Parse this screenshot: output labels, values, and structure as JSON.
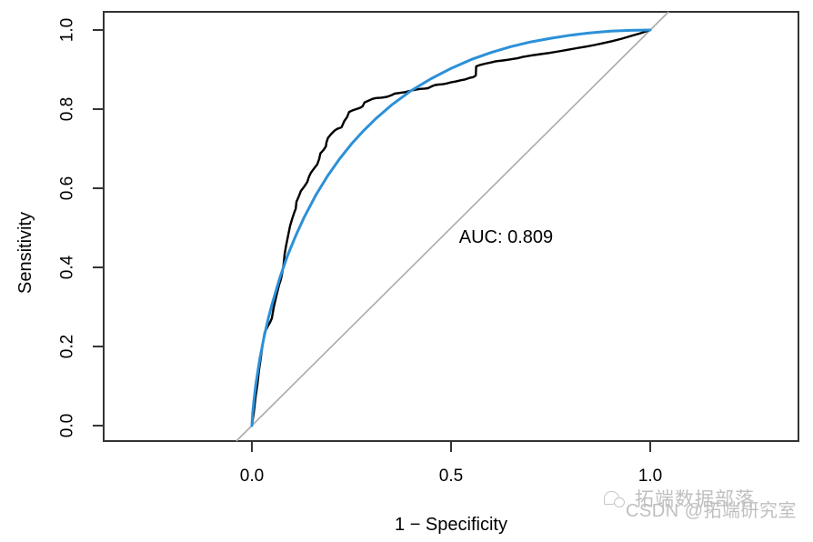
{
  "figure": {
    "background": "#ffffff",
    "axis_color": "#333333",
    "text_color": "#000000"
  },
  "chart_data": {
    "type": "line",
    "title": "",
    "xlabel": "1 − Specificity",
    "ylabel": "Sensitivity",
    "xlim": [
      -0.372,
      1.372
    ],
    "ylim": [
      -0.039,
      1.046
    ],
    "grid": false,
    "legend": "none",
    "x_ticks": [
      0.0,
      0.5,
      1.0
    ],
    "x_tick_labels": [
      "0.0",
      "0.5",
      "1.0"
    ],
    "y_ticks": [
      0.0,
      0.2,
      0.4,
      0.6,
      0.8,
      1.0
    ],
    "y_tick_labels": [
      "0.0",
      "0.2",
      "0.4",
      "0.6",
      "0.8",
      "1.0"
    ],
    "annotation": {
      "text": "AUC: 0.809",
      "x": 0.638,
      "y": 0.476
    },
    "reference_line": {
      "from": [
        0,
        0
      ],
      "to": [
        1,
        1
      ],
      "color": "#ababab",
      "meaning": "chance diagonal"
    },
    "series": [
      {
        "name": "empirical ROC",
        "color": "#000000",
        "width": 2.4,
        "points": [
          [
            0.0,
            0.0
          ],
          [
            0.005,
            0.035
          ],
          [
            0.009,
            0.07
          ],
          [
            0.014,
            0.105
          ],
          [
            0.018,
            0.14
          ],
          [
            0.023,
            0.175
          ],
          [
            0.027,
            0.205
          ],
          [
            0.032,
            0.235
          ],
          [
            0.041,
            0.253
          ],
          [
            0.046,
            0.262
          ],
          [
            0.05,
            0.271
          ],
          [
            0.055,
            0.3
          ],
          [
            0.062,
            0.33
          ],
          [
            0.068,
            0.355
          ],
          [
            0.073,
            0.37
          ],
          [
            0.077,
            0.39
          ],
          [
            0.08,
            0.41
          ],
          [
            0.082,
            0.432
          ],
          [
            0.086,
            0.455
          ],
          [
            0.091,
            0.48
          ],
          [
            0.096,
            0.505
          ],
          [
            0.102,
            0.525
          ],
          [
            0.107,
            0.54
          ],
          [
            0.11,
            0.548
          ],
          [
            0.112,
            0.566
          ],
          [
            0.118,
            0.58
          ],
          [
            0.123,
            0.593
          ],
          [
            0.132,
            0.605
          ],
          [
            0.139,
            0.616
          ],
          [
            0.143,
            0.628
          ],
          [
            0.148,
            0.639
          ],
          [
            0.157,
            0.651
          ],
          [
            0.164,
            0.66
          ],
          [
            0.169,
            0.674
          ],
          [
            0.172,
            0.688
          ],
          [
            0.18,
            0.697
          ],
          [
            0.186,
            0.706
          ],
          [
            0.187,
            0.715
          ],
          [
            0.191,
            0.727
          ],
          [
            0.198,
            0.736
          ],
          [
            0.207,
            0.745
          ],
          [
            0.214,
            0.75
          ],
          [
            0.225,
            0.754
          ],
          [
            0.229,
            0.763
          ],
          [
            0.232,
            0.77
          ],
          [
            0.239,
            0.78
          ],
          [
            0.244,
            0.793
          ],
          [
            0.253,
            0.797
          ],
          [
            0.262,
            0.8
          ],
          [
            0.271,
            0.803
          ],
          [
            0.278,
            0.807
          ],
          [
            0.283,
            0.817
          ],
          [
            0.292,
            0.821
          ],
          [
            0.303,
            0.826
          ],
          [
            0.312,
            0.828
          ],
          [
            0.325,
            0.829
          ],
          [
            0.339,
            0.831
          ],
          [
            0.35,
            0.835
          ],
          [
            0.358,
            0.839
          ],
          [
            0.371,
            0.841
          ],
          [
            0.385,
            0.843
          ],
          [
            0.396,
            0.846
          ],
          [
            0.41,
            0.849
          ],
          [
            0.422,
            0.851
          ],
          [
            0.434,
            0.852
          ],
          [
            0.442,
            0.853
          ],
          [
            0.452,
            0.858
          ],
          [
            0.46,
            0.861
          ],
          [
            0.468,
            0.862
          ],
          [
            0.48,
            0.863
          ],
          [
            0.49,
            0.865
          ],
          [
            0.501,
            0.868
          ],
          [
            0.512,
            0.87
          ],
          [
            0.524,
            0.873
          ],
          [
            0.535,
            0.875
          ],
          [
            0.547,
            0.879
          ],
          [
            0.556,
            0.881
          ],
          [
            0.562,
            0.885
          ],
          [
            0.563,
            0.908
          ],
          [
            0.574,
            0.912
          ],
          [
            0.586,
            0.915
          ],
          [
            0.6,
            0.918
          ],
          [
            0.612,
            0.921
          ],
          [
            0.63,
            0.923
          ],
          [
            0.645,
            0.925
          ],
          [
            0.656,
            0.927
          ],
          [
            0.668,
            0.929
          ],
          [
            0.68,
            0.932
          ],
          [
            0.702,
            0.936
          ],
          [
            0.725,
            0.939
          ],
          [
            0.747,
            0.942
          ],
          [
            0.77,
            0.946
          ],
          [
            0.792,
            0.95
          ],
          [
            0.815,
            0.954
          ],
          [
            0.838,
            0.958
          ],
          [
            0.86,
            0.962
          ],
          [
            0.882,
            0.967
          ],
          [
            0.905,
            0.972
          ],
          [
            0.928,
            0.978
          ],
          [
            0.952,
            0.985
          ],
          [
            0.976,
            0.992
          ],
          [
            1.0,
            1.0
          ]
        ]
      },
      {
        "name": "smoothed ROC",
        "color": "#2b90d8",
        "width": 3,
        "points": [
          [
            0.0,
            0.0
          ],
          [
            0.002,
            0.031
          ],
          [
            0.005,
            0.063
          ],
          [
            0.01,
            0.104
          ],
          [
            0.02,
            0.169
          ],
          [
            0.03,
            0.221
          ],
          [
            0.04,
            0.266
          ],
          [
            0.05,
            0.305
          ],
          [
            0.07,
            0.373
          ],
          [
            0.09,
            0.431
          ],
          [
            0.11,
            0.48
          ],
          [
            0.13,
            0.524
          ],
          [
            0.16,
            0.582
          ],
          [
            0.19,
            0.631
          ],
          [
            0.22,
            0.674
          ],
          [
            0.25,
            0.712
          ],
          [
            0.28,
            0.745
          ],
          [
            0.31,
            0.775
          ],
          [
            0.35,
            0.81
          ],
          [
            0.4,
            0.847
          ],
          [
            0.45,
            0.877
          ],
          [
            0.5,
            0.903
          ],
          [
            0.55,
            0.925
          ],
          [
            0.6,
            0.943
          ],
          [
            0.65,
            0.958
          ],
          [
            0.7,
            0.97
          ],
          [
            0.75,
            0.979
          ],
          [
            0.8,
            0.987
          ],
          [
            0.85,
            0.993
          ],
          [
            0.9,
            0.997
          ],
          [
            0.95,
            0.999
          ],
          [
            1.0,
            1.0
          ]
        ]
      }
    ]
  },
  "watermark": {
    "line1": "拓端数据部落",
    "line2": "CSDN @拓端研究室",
    "color": "#b5b5b5"
  }
}
